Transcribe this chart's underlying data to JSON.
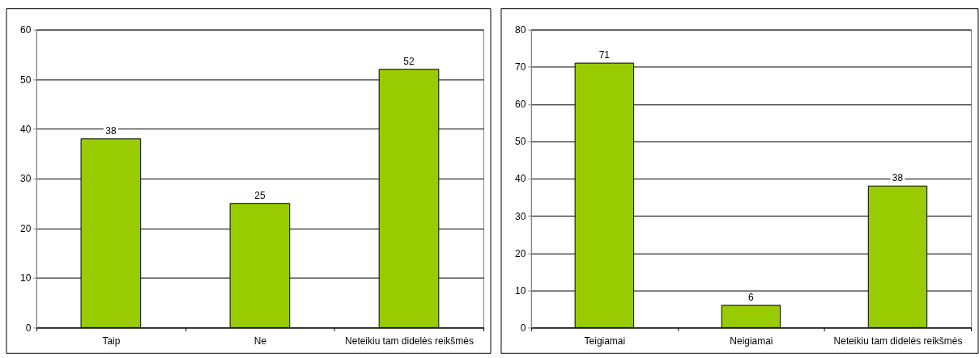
{
  "chart_data": [
    {
      "type": "bar",
      "categories": [
        "Taip",
        "Ne",
        "Neteikiu tam didelės reikšmės"
      ],
      "values": [
        38,
        25,
        52
      ],
      "color": "#99cc00",
      "ylim": [
        0,
        60
      ],
      "yticks": [
        0,
        10,
        20,
        30,
        40,
        50,
        60
      ],
      "grid": "y",
      "data_labels": true
    },
    {
      "type": "bar",
      "categories": [
        "Teigiamai",
        "Neigiamai",
        "Neteikiu tam didelės reikšmės"
      ],
      "values": [
        71,
        6,
        38
      ],
      "color": "#99cc00",
      "ylim": [
        0,
        80
      ],
      "yticks": [
        0,
        10,
        20,
        30,
        40,
        50,
        60,
        70,
        80
      ],
      "grid": "y",
      "data_labels": true
    }
  ]
}
